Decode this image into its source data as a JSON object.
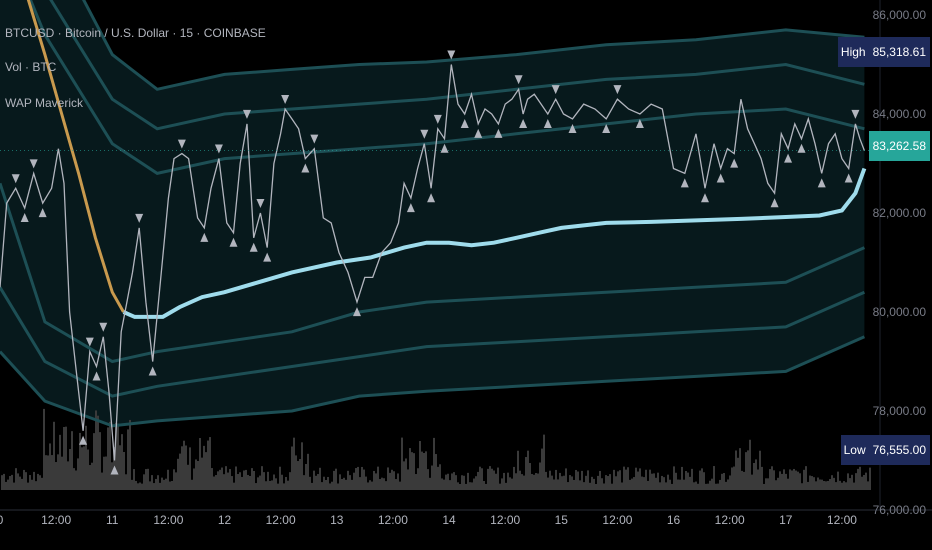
{
  "header": {
    "title": "BTCUSD · Bitcoin / U.S. Dollar · 15 · COINBASE",
    "volume_label": "Vol · BTC",
    "indicator_label": "WAP Maverick"
  },
  "price_tags": {
    "high_label": "High",
    "high_value": "85,318.61",
    "current_value": "83,262.58",
    "low_label": "Low",
    "low_value": "76,555.00"
  },
  "colors": {
    "background": "#000000",
    "price_line": "#b2b5be",
    "vwap_line": "#9fdcec",
    "vwap_down_segment": "#c99a4e",
    "bands": "#1d4f55",
    "band_fill": "#07191c",
    "volume": "#3a3a3a",
    "marker": "#b2b5be",
    "high_tag": "#1e2a5a",
    "current_tag": "#26a69a",
    "low_tag": "#1e2a5a"
  },
  "chart_data": {
    "type": "line",
    "title": "BTCUSD · Bitcoin / U.S. Dollar · 15 · COINBASE",
    "x_tick_labels": [
      "0",
      "12:00",
      "11",
      "12:00",
      "12",
      "12:00",
      "13",
      "12:00",
      "14",
      "12:00",
      "15",
      "12:00",
      "16",
      "12:00",
      "17",
      "12:00"
    ],
    "y_tick_labels": [
      "86,000.00",
      "84,000.00",
      "82,000.00",
      "80,000.00",
      "78,000.00",
      "76,000.00"
    ],
    "ylim": [
      76000,
      86000
    ],
    "xlim_days": [
      10.0,
      17.75
    ],
    "price_high": 85318.61,
    "price_low": 76555.0,
    "price_current": 83262.58,
    "series": [
      {
        "name": "BTCUSD",
        "x": [
          10.0,
          10.06,
          10.14,
          10.22,
          10.3,
          10.38,
          10.46,
          10.52,
          10.57,
          10.62,
          10.68,
          10.74,
          10.8,
          10.86,
          10.92,
          10.97,
          11.02,
          11.08,
          11.13,
          11.18,
          11.24,
          11.3,
          11.36,
          11.42,
          11.5,
          11.55,
          11.62,
          11.68,
          11.72,
          11.76,
          11.82,
          11.88,
          11.95,
          12.02,
          12.08,
          12.14,
          12.2,
          12.26,
          12.32,
          12.38,
          12.44,
          12.5,
          12.54,
          12.6,
          12.66,
          12.72,
          12.8,
          12.88,
          12.95,
          13.02,
          13.1,
          13.18,
          13.25,
          13.32,
          13.4,
          13.48,
          13.55,
          13.6,
          13.66,
          13.72,
          13.78,
          13.84,
          13.9,
          13.96,
          14.02,
          14.08,
          14.14,
          14.2,
          14.26,
          14.32,
          14.38,
          14.44,
          14.5,
          14.56,
          14.62,
          14.66,
          14.7,
          14.76,
          14.82,
          14.88,
          14.95,
          15.02,
          15.1,
          15.2,
          15.3,
          15.4,
          15.5,
          15.6,
          15.7,
          15.8,
          15.9,
          16.0,
          16.1,
          16.2,
          16.28,
          16.36,
          16.42,
          16.48,
          16.54,
          16.6,
          16.66,
          16.72,
          16.78,
          16.84,
          16.9,
          16.96,
          17.02,
          17.08,
          17.14,
          17.2,
          17.26,
          17.32,
          17.38,
          17.44,
          17.5,
          17.56,
          17.62,
          17.66,
          17.7
        ],
        "values": [
          80500,
          82200,
          82500,
          82100,
          82800,
          82200,
          82500,
          83300,
          82600,
          80000,
          78800,
          77600,
          79200,
          78900,
          79500,
          78400,
          77000,
          79600,
          80200,
          80800,
          81700,
          80200,
          79000,
          80400,
          82300,
          83100,
          83200,
          83100,
          82500,
          81900,
          81700,
          82500,
          83100,
          81800,
          81600,
          83000,
          83800,
          81500,
          82000,
          81300,
          83000,
          83600,
          84100,
          83900,
          83700,
          83100,
          83300,
          81900,
          81800,
          81200,
          80800,
          80200,
          80700,
          80700,
          81200,
          81400,
          81800,
          82600,
          82300,
          82900,
          83400,
          82500,
          83700,
          83500,
          85000,
          84200,
          84000,
          84400,
          83800,
          84100,
          84000,
          83800,
          84200,
          84300,
          84500,
          84000,
          84300,
          84400,
          84200,
          84000,
          84300,
          84000,
          83900,
          84200,
          84100,
          83900,
          84300,
          84100,
          84000,
          84200,
          84100,
          82900,
          82800,
          83600,
          82500,
          83400,
          82900,
          83300,
          83200,
          84300,
          83700,
          83400,
          83100,
          82600,
          82400,
          83600,
          83300,
          83800,
          83500,
          83900,
          83400,
          82800,
          83400,
          83600,
          83100,
          82900,
          83800,
          83500,
          83260
        ]
      },
      {
        "name": "VWAP",
        "x": [
          10.0,
          10.2,
          10.4,
          10.55,
          10.7,
          10.85,
          11.0,
          11.1,
          11.2,
          11.3,
          11.45,
          11.6,
          11.8,
          12.0,
          12.3,
          12.6,
          13.0,
          13.3,
          13.6,
          13.8,
          14.0,
          14.2,
          14.4,
          14.6,
          14.8,
          15.0,
          15.4,
          15.8,
          16.2,
          16.6,
          17.0,
          17.3,
          17.5,
          17.62,
          17.7
        ],
        "values": [
          88000,
          86700,
          85200,
          84000,
          82800,
          81500,
          80400,
          80000,
          79900,
          79900,
          79900,
          80100,
          80300,
          80400,
          80600,
          80800,
          81000,
          81100,
          81300,
          81400,
          81400,
          81350,
          81400,
          81500,
          81600,
          81700,
          81800,
          81820,
          81850,
          81880,
          81920,
          81950,
          82050,
          82400,
          82900
        ]
      }
    ],
    "bands": {
      "upper_3": [
        89500,
        87800,
        85200,
        84500,
        84800,
        84900,
        85000,
        85050,
        85200,
        85400,
        85500,
        85700,
        85550
      ],
      "upper_2": [
        88500,
        86500,
        84300,
        83700,
        84000,
        84100,
        84200,
        84300,
        84500,
        84700,
        84800,
        85000,
        84600
      ],
      "upper_1": [
        87800,
        85600,
        83400,
        82800,
        83100,
        83200,
        83300,
        83400,
        83600,
        83800,
        84000,
        84100,
        83700
      ],
      "lower_1": [
        82600,
        79800,
        79000,
        79200,
        79400,
        79600,
        80000,
        80200,
        80300,
        80400,
        80500,
        80600,
        81300
      ],
      "lower_2": [
        80500,
        79000,
        78300,
        78500,
        78700,
        78900,
        79100,
        79300,
        79400,
        79500,
        79600,
        79700,
        80400
      ],
      "lower_3": [
        79200,
        78200,
        77700,
        77800,
        77900,
        78000,
        78300,
        78400,
        78500,
        78600,
        78700,
        78800,
        79500
      ],
      "x": [
        10.0,
        10.4,
        11.0,
        11.4,
        12.0,
        12.6,
        13.2,
        13.8,
        14.6,
        15.4,
        16.2,
        17.0,
        17.7
      ]
    }
  }
}
